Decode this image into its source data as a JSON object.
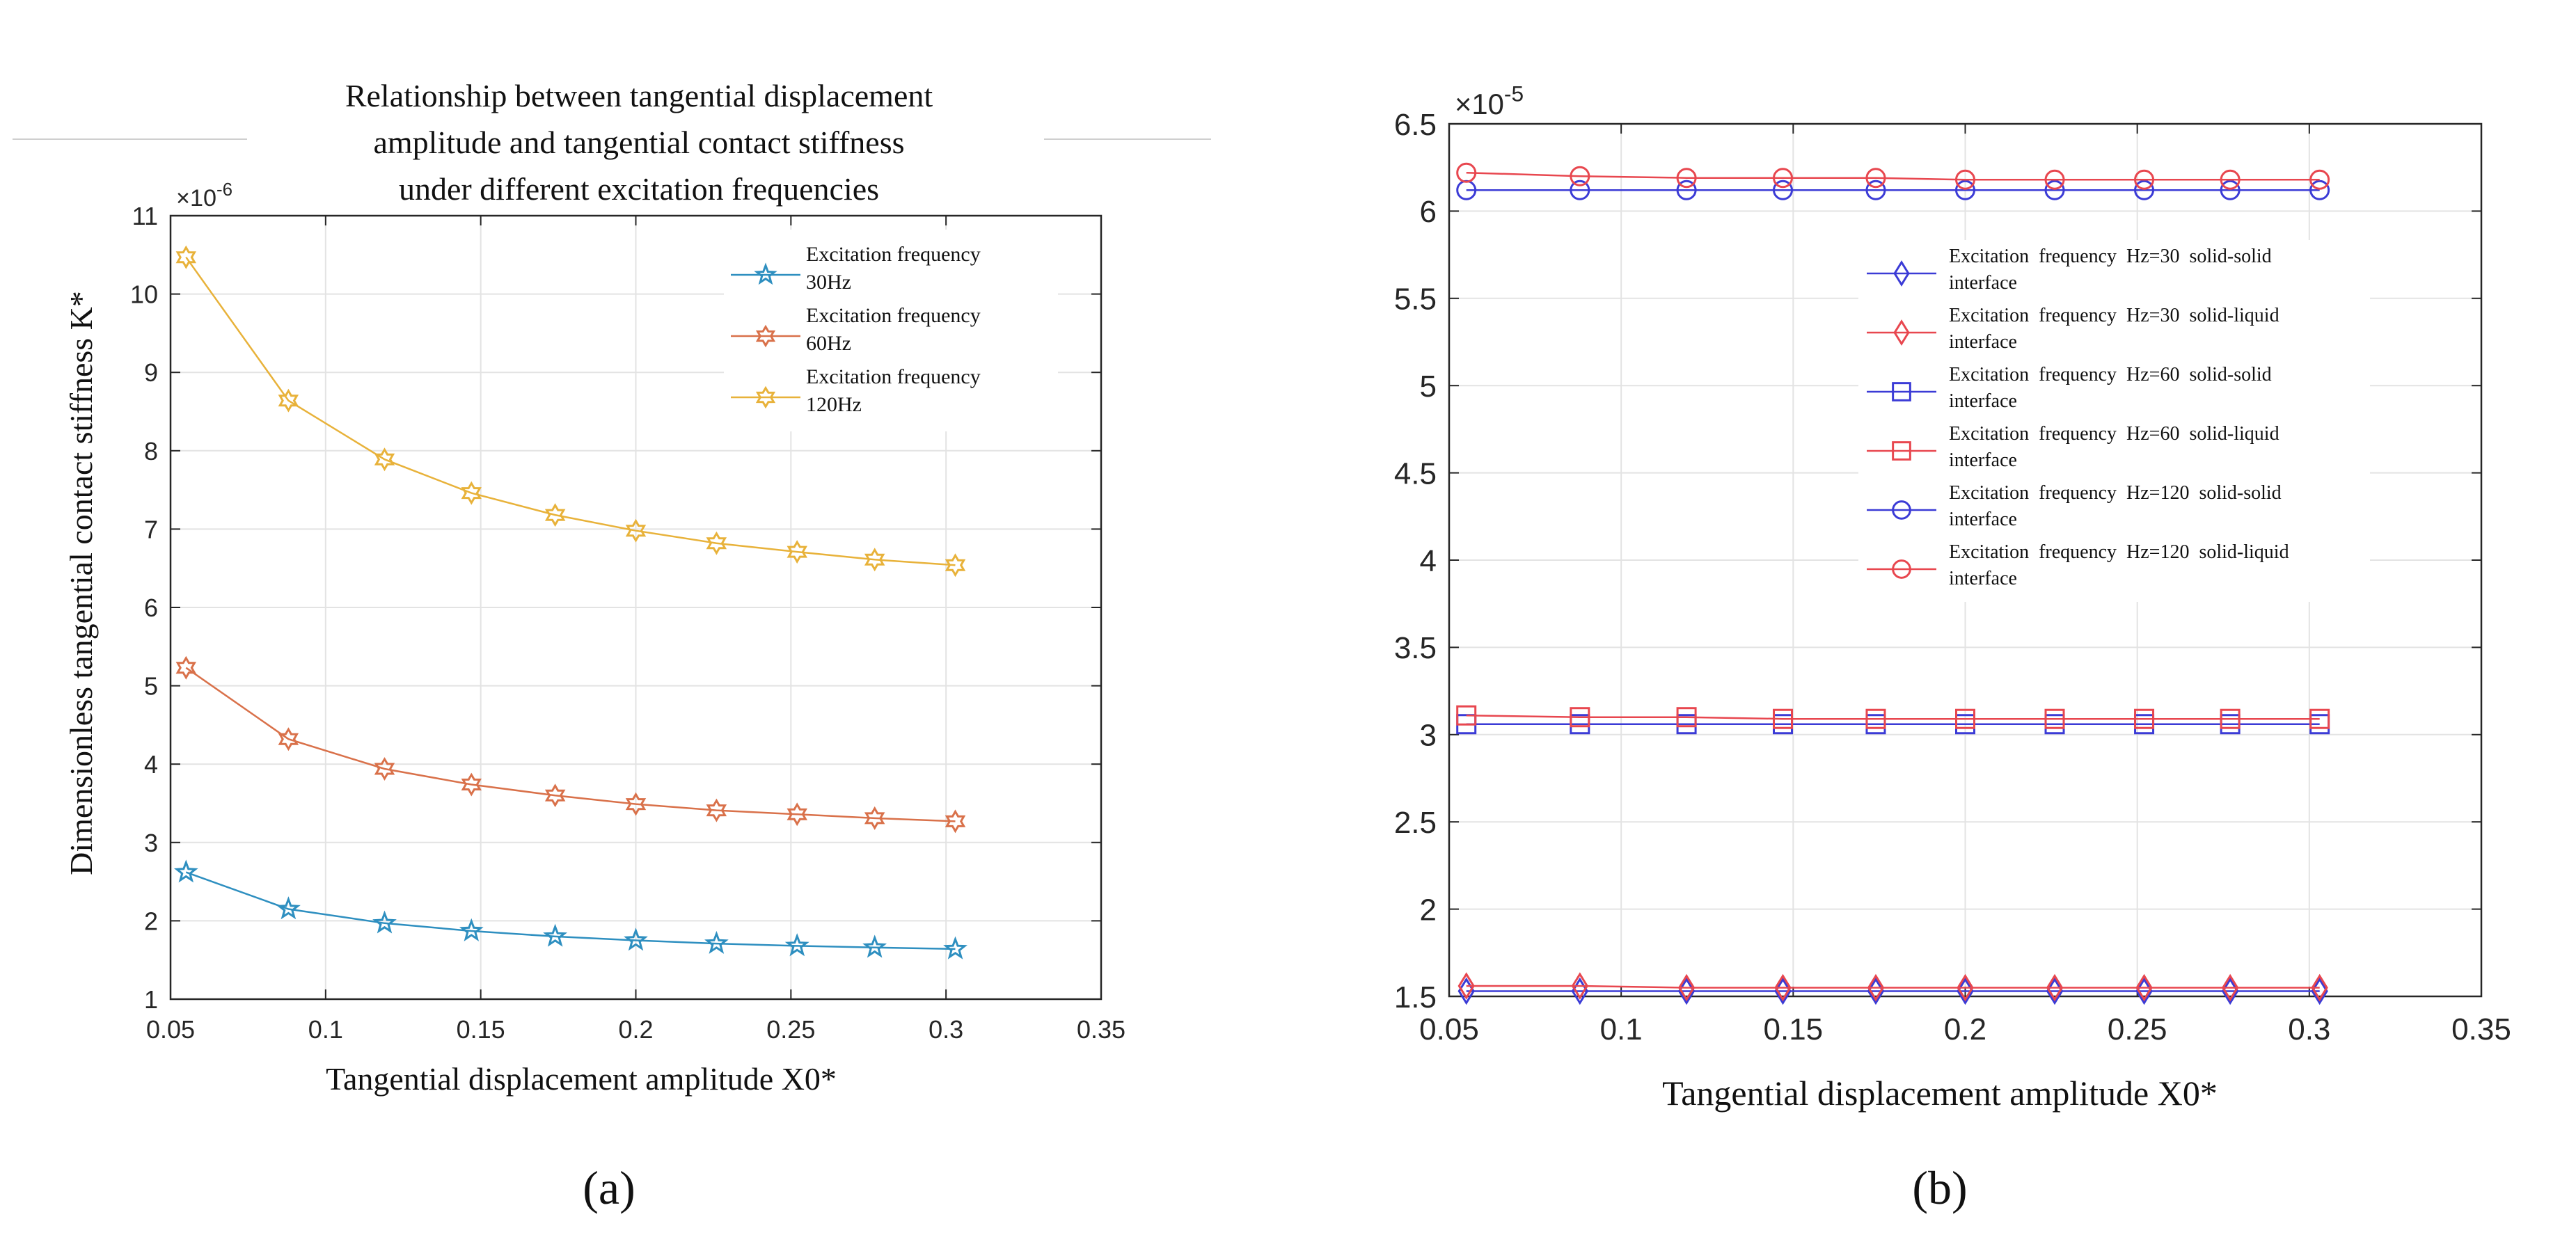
{
  "chart_data": [
    {
      "panel_label": "(a)",
      "type": "line",
      "title_lines": [
        "Relationship between tangential displacement",
        "amplitude and tangential contact stiffness",
        "under different excitation frequencies"
      ],
      "xlabel": "Tangential displacement amplitude X0*",
      "ylabel": "Dimensionless tangential contact stiffness K*",
      "exponent_label": "×10",
      "exponent_power": "-6",
      "xlim": [
        0.05,
        0.35
      ],
      "ylim": [
        1,
        11
      ],
      "xticks": [
        0.05,
        0.1,
        0.15,
        0.2,
        0.25,
        0.3,
        0.35
      ],
      "xtick_labels": [
        "0.05",
        "0.1",
        "0.15",
        "0.2",
        "0.25",
        "0.3",
        "0.35"
      ],
      "yticks": [
        1,
        2,
        3,
        4,
        5,
        6,
        7,
        8,
        9,
        10,
        11
      ],
      "ytick_labels": [
        "1",
        "2",
        "3",
        "4",
        "5",
        "6",
        "7",
        "8",
        "9",
        "10",
        "11"
      ],
      "grid": true,
      "legend_position": "top-right",
      "x": [
        0.055,
        0.088,
        0.119,
        0.147,
        0.174,
        0.2,
        0.226,
        0.252,
        0.277,
        0.303
      ],
      "series": [
        {
          "name": "Excitation frequency 30Hz",
          "legend_lines": [
            "Excitation frequency",
            "30Hz"
          ],
          "color": "#2e8fc0",
          "marker": "star",
          "values": [
            2.62,
            2.15,
            1.97,
            1.87,
            1.8,
            1.75,
            1.71,
            1.68,
            1.66,
            1.64
          ]
        },
        {
          "name": "Excitation frequency 60Hz",
          "legend_lines": [
            "Excitation frequency",
            "60Hz"
          ],
          "color": "#d9714a",
          "marker": "hexagram",
          "values": [
            5.23,
            4.32,
            3.94,
            3.74,
            3.6,
            3.49,
            3.41,
            3.36,
            3.31,
            3.27
          ]
        },
        {
          "name": "Excitation frequency 120Hz",
          "legend_lines": [
            "Excitation frequency",
            "120Hz"
          ],
          "color": "#e8b23a",
          "marker": "hexagram",
          "values": [
            10.47,
            8.64,
            7.89,
            7.46,
            7.18,
            6.98,
            6.82,
            6.71,
            6.61,
            6.54
          ]
        }
      ]
    },
    {
      "panel_label": "(b)",
      "type": "line",
      "xlabel": "Tangential displacement amplitude X0*",
      "exponent_label": "×10",
      "exponent_power": "-5",
      "xlim": [
        0.05,
        0.35
      ],
      "ylim": [
        1.5,
        6.5
      ],
      "xticks": [
        0.05,
        0.1,
        0.15,
        0.2,
        0.25,
        0.3,
        0.35
      ],
      "xtick_labels": [
        "0.05",
        "0.1",
        "0.15",
        "0.2",
        "0.25",
        "0.3",
        "0.35"
      ],
      "yticks": [
        1.5,
        2,
        2.5,
        3,
        3.5,
        4,
        4.5,
        5,
        5.5,
        6,
        6.5
      ],
      "ytick_labels": [
        "1.5",
        "2",
        "2.5",
        "3",
        "3.5",
        "4",
        "4.5",
        "5",
        "5.5",
        "6",
        "6.5"
      ],
      "grid": true,
      "legend_position": "top-right",
      "x": [
        0.055,
        0.088,
        0.119,
        0.147,
        0.174,
        0.2,
        0.226,
        0.252,
        0.277,
        0.303
      ],
      "series": [
        {
          "name": "Excitation frequency Hz=30 solid-solid interface",
          "legend_lines": [
            "Excitation  frequency  Hz=30  solid-solid",
            "interface"
          ],
          "color": "#3b3bd6",
          "marker": "diamond",
          "values": [
            1.53,
            1.53,
            1.53,
            1.53,
            1.53,
            1.53,
            1.53,
            1.53,
            1.53,
            1.53
          ]
        },
        {
          "name": "Excitation frequency Hz=30 solid-liquid interface",
          "legend_lines": [
            "Excitation  frequency  Hz=30  solid-liquid",
            "interface"
          ],
          "color": "#e8474f",
          "marker": "diamond",
          "values": [
            1.56,
            1.56,
            1.55,
            1.55,
            1.55,
            1.55,
            1.55,
            1.55,
            1.55,
            1.55
          ]
        },
        {
          "name": "Excitation frequency Hz=60 solid-solid interface",
          "legend_lines": [
            "Excitation  frequency  Hz=60  solid-solid",
            "interface"
          ],
          "color": "#3b3bd6",
          "marker": "square",
          "values": [
            3.06,
            3.06,
            3.06,
            3.06,
            3.06,
            3.06,
            3.06,
            3.06,
            3.06,
            3.06
          ]
        },
        {
          "name": "Excitation frequency Hz=60 solid-liquid interface",
          "legend_lines": [
            "Excitation  frequency  Hz=60  solid-liquid",
            "interface"
          ],
          "color": "#e8474f",
          "marker": "square",
          "values": [
            3.11,
            3.1,
            3.1,
            3.09,
            3.09,
            3.09,
            3.09,
            3.09,
            3.09,
            3.09
          ]
        },
        {
          "name": "Excitation frequency Hz=120 solid-solid interface",
          "legend_lines": [
            "Excitation  frequency  Hz=120  solid-solid",
            "interface"
          ],
          "color": "#3b3bd6",
          "marker": "circle",
          "values": [
            6.12,
            6.12,
            6.12,
            6.12,
            6.12,
            6.12,
            6.12,
            6.12,
            6.12,
            6.12
          ]
        },
        {
          "name": "Excitation frequency Hz=120 solid-liquid interface",
          "legend_lines": [
            "Excitation  frequency  Hz=120  solid-liquid",
            "interface"
          ],
          "color": "#e8474f",
          "marker": "circle",
          "values": [
            6.22,
            6.2,
            6.19,
            6.19,
            6.19,
            6.18,
            6.18,
            6.18,
            6.18,
            6.18
          ]
        }
      ]
    }
  ]
}
